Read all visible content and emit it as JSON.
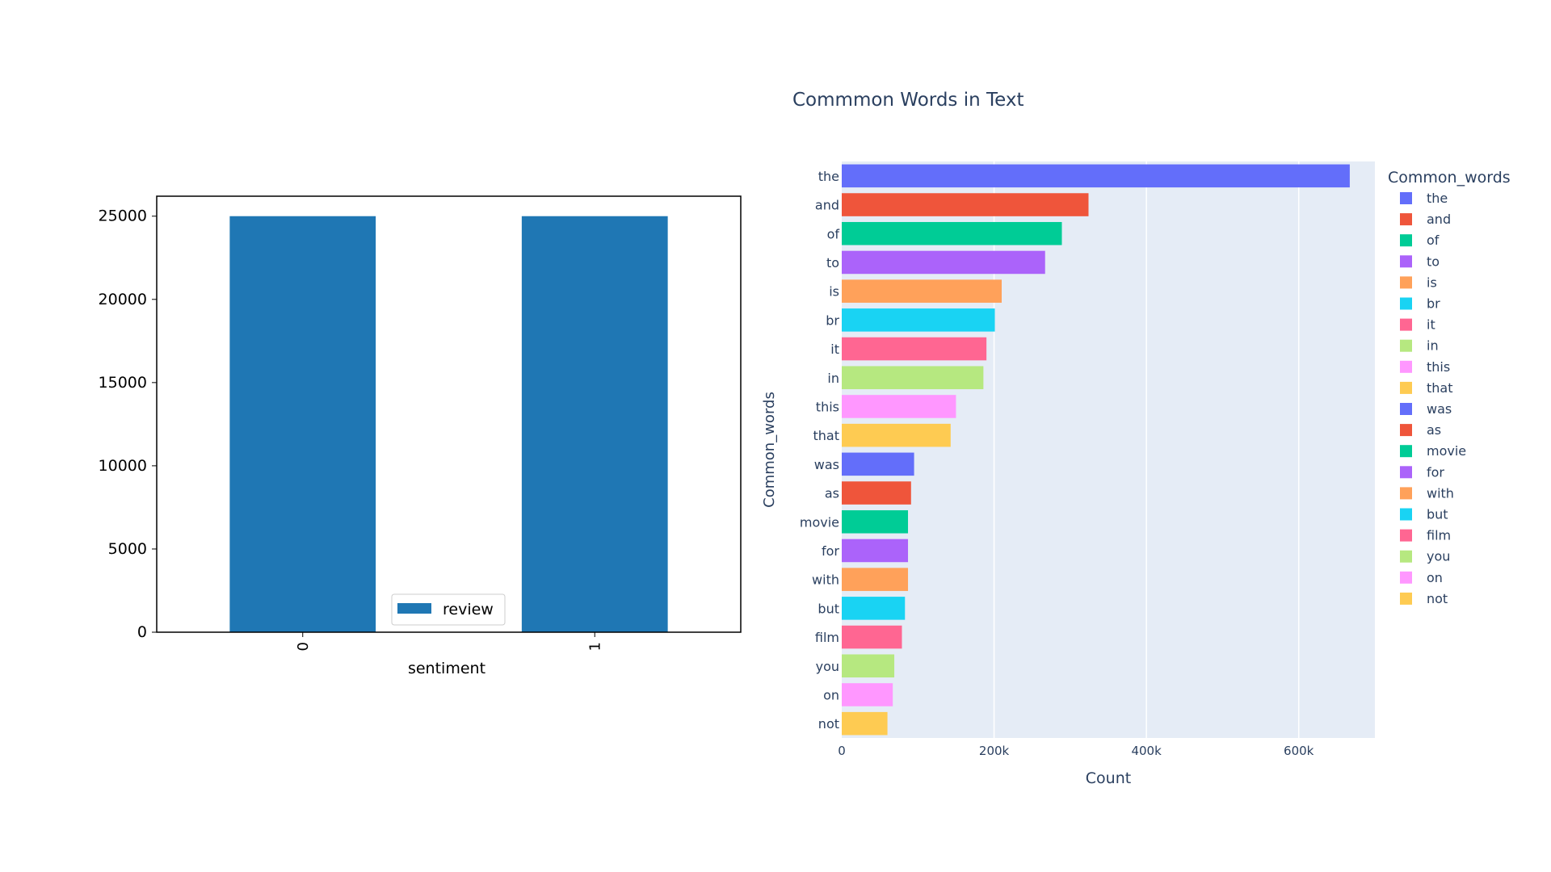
{
  "chart_data": [
    {
      "type": "bar",
      "categories": [
        "0",
        "1"
      ],
      "series": [
        {
          "name": "review",
          "values": [
            25000,
            25000
          ]
        }
      ],
      "xlabel": "sentiment",
      "ylabel": "",
      "ylim": [
        0,
        26200
      ],
      "yticks": [
        0,
        5000,
        10000,
        15000,
        20000,
        25000
      ],
      "ytick_labels": [
        "0",
        "5000",
        "10000",
        "15000",
        "20000",
        "25000"
      ],
      "legend_position": "lower-center",
      "grid": false,
      "colors": [
        "#1f77b4"
      ]
    },
    {
      "type": "bar",
      "orientation": "horizontal",
      "title": "Commmon Words in Text",
      "xlabel": "Count",
      "ylabel": "Common_words",
      "xlim": [
        0,
        700000
      ],
      "xticks": [
        0,
        200000,
        400000,
        600000
      ],
      "xtick_labels": [
        "0",
        "200k",
        "400k",
        "600k"
      ],
      "legend_title": "Common_words",
      "legend_position": "right",
      "grid": true,
      "categories": [
        "the",
        "and",
        "of",
        "to",
        "is",
        "br",
        "it",
        "in",
        "this",
        "that",
        "was",
        "as",
        "movie",
        "for",
        "with",
        "but",
        "film",
        "you",
        "on",
        "not"
      ],
      "values": [
        667000,
        324000,
        289000,
        267000,
        210000,
        201000,
        190000,
        186000,
        150000,
        143000,
        95000,
        91000,
        87000,
        87000,
        87000,
        83000,
        79000,
        69000,
        67000,
        60000
      ],
      "colors": [
        "#636efa",
        "#ef553b",
        "#00cc96",
        "#ab63fa",
        "#ffa15a",
        "#19d3f3",
        "#ff6692",
        "#b6e880",
        "#ff97ff",
        "#fecb52",
        "#636efa",
        "#ef553b",
        "#00cc96",
        "#ab63fa",
        "#ffa15a",
        "#19d3f3",
        "#ff6692",
        "#b6e880",
        "#ff97ff",
        "#fecb52"
      ]
    }
  ]
}
